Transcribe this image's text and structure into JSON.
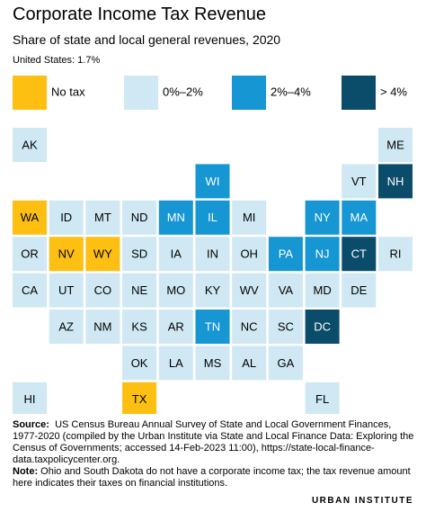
{
  "header": {
    "title": "Corporate Income Tax Revenue",
    "subtitle": "Share of state and local general revenues, 2020",
    "national": "United States: 1.7%"
  },
  "legend": [
    {
      "label": "No tax",
      "color": "#fdbf11",
      "text_color": "#000000"
    },
    {
      "label": "0%–2%",
      "color": "#cfe8f3",
      "text_color": "#000000"
    },
    {
      "label": "2%–4%",
      "color": "#1696d2",
      "text_color": "#ffffff"
    },
    {
      "label": "> 4%",
      "color": "#0a4c6a",
      "text_color": "#ffffff"
    }
  ],
  "tiles": [
    {
      "label": "AK",
      "bin": 1
    },
    {
      "label": "ME",
      "bin": 1
    },
    {
      "label": "WI",
      "bin": 2
    },
    {
      "label": "VT",
      "bin": 1
    },
    {
      "label": "NH",
      "bin": 3
    },
    {
      "label": "WA",
      "bin": 0
    },
    {
      "label": "ID",
      "bin": 1
    },
    {
      "label": "MT",
      "bin": 1
    },
    {
      "label": "ND",
      "bin": 1
    },
    {
      "label": "MN",
      "bin": 2
    },
    {
      "label": "IL",
      "bin": 2
    },
    {
      "label": "MI",
      "bin": 1
    },
    {
      "label": "NY",
      "bin": 2
    },
    {
      "label": "MA",
      "bin": 2
    },
    {
      "label": "OR",
      "bin": 1
    },
    {
      "label": "NV",
      "bin": 0
    },
    {
      "label": "WY",
      "bin": 0
    },
    {
      "label": "SD",
      "bin": 1
    },
    {
      "label": "IA",
      "bin": 1
    },
    {
      "label": "IN",
      "bin": 1
    },
    {
      "label": "OH",
      "bin": 1
    },
    {
      "label": "PA",
      "bin": 2
    },
    {
      "label": "NJ",
      "bin": 2
    },
    {
      "label": "CT",
      "bin": 3
    },
    {
      "label": "RI",
      "bin": 1
    },
    {
      "label": "CA",
      "bin": 1
    },
    {
      "label": "UT",
      "bin": 1
    },
    {
      "label": "CO",
      "bin": 1
    },
    {
      "label": "NE",
      "bin": 1
    },
    {
      "label": "MO",
      "bin": 1
    },
    {
      "label": "KY",
      "bin": 1
    },
    {
      "label": "WV",
      "bin": 1
    },
    {
      "label": "VA",
      "bin": 1
    },
    {
      "label": "MD",
      "bin": 1
    },
    {
      "label": "DE",
      "bin": 1
    },
    {
      "label": "AZ",
      "bin": 1
    },
    {
      "label": "NM",
      "bin": 1
    },
    {
      "label": "KS",
      "bin": 1
    },
    {
      "label": "AR",
      "bin": 1
    },
    {
      "label": "TN",
      "bin": 2
    },
    {
      "label": "NC",
      "bin": 1
    },
    {
      "label": "SC",
      "bin": 1
    },
    {
      "label": "DC",
      "bin": 3
    },
    {
      "label": "OK",
      "bin": 1
    },
    {
      "label": "LA",
      "bin": 1
    },
    {
      "label": "MS",
      "bin": 1
    },
    {
      "label": "AL",
      "bin": 1
    },
    {
      "label": "GA",
      "bin": 1
    },
    {
      "label": "HI",
      "bin": 1
    },
    {
      "label": "TX",
      "bin": 0
    },
    {
      "label": "FL",
      "bin": 1
    }
  ],
  "footer": {
    "source_label": "Source:",
    "source_text": "US Census Bureau Annual Survey of State and Local Government Finances, 1977-2020 (compiled by the Urban Institute via State and Local Finance Data: Exploring the Census of Governments; accessed 14-Feb-2023 11:00), https://state-local-finance-data.taxpolicycenter.org.",
    "note_label": "Note:",
    "note_text": "Ohio and South Dakota do not have a corporate income tax; the tax revenue amount here indicates their taxes on financial institutions.",
    "brand": "URBAN INSTITUTE"
  }
}
